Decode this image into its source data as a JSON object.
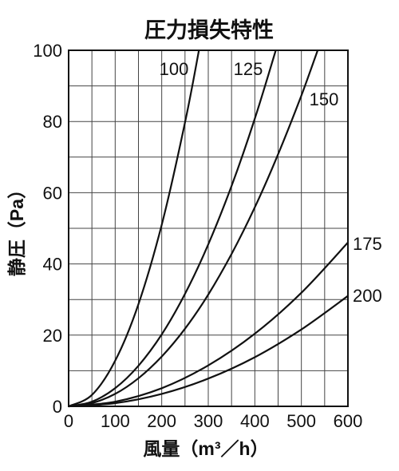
{
  "chart_data": {
    "type": "line",
    "title": "圧力損失特性",
    "xlabel": "風量（m³／h）",
    "ylabel": "静圧（Pa）",
    "xlim": [
      0,
      600
    ],
    "ylim": [
      0,
      100
    ],
    "x_ticks": [
      0,
      100,
      200,
      300,
      400,
      500,
      600
    ],
    "y_ticks": [
      0,
      20,
      40,
      60,
      80,
      100
    ],
    "x_grid_step": 50,
    "y_grid_step": 10,
    "grid": true,
    "legend": "none (curves labeled directly)",
    "series": [
      {
        "name": "100",
        "x": [
          0,
          50,
          100,
          150,
          200,
          250,
          280
        ],
        "y": [
          0,
          3.2,
          12.8,
          28.7,
          51.0,
          79.7,
          100
        ]
      },
      {
        "name": "125",
        "x": [
          0,
          50,
          100,
          150,
          200,
          250,
          300,
          350,
          400,
          445
        ],
        "y": [
          0,
          1.3,
          5.1,
          11.4,
          20.2,
          31.6,
          45.5,
          61.9,
          80.8,
          100
        ]
      },
      {
        "name": "150",
        "x": [
          0,
          50,
          100,
          150,
          200,
          250,
          300,
          350,
          400,
          450,
          500,
          535
        ],
        "y": [
          0,
          0.9,
          3.5,
          7.9,
          14.0,
          21.8,
          31.4,
          42.8,
          55.9,
          70.8,
          87.3,
          100
        ]
      },
      {
        "name": "175",
        "x": [
          0,
          100,
          200,
          300,
          400,
          500,
          600
        ],
        "y": [
          0,
          1.3,
          5.1,
          11.5,
          20.4,
          31.9,
          46.0
        ]
      },
      {
        "name": "200",
        "x": [
          0,
          100,
          200,
          300,
          400,
          500,
          600
        ],
        "y": [
          0,
          0.9,
          3.5,
          7.8,
          13.8,
          21.6,
          31.0
        ]
      }
    ]
  }
}
